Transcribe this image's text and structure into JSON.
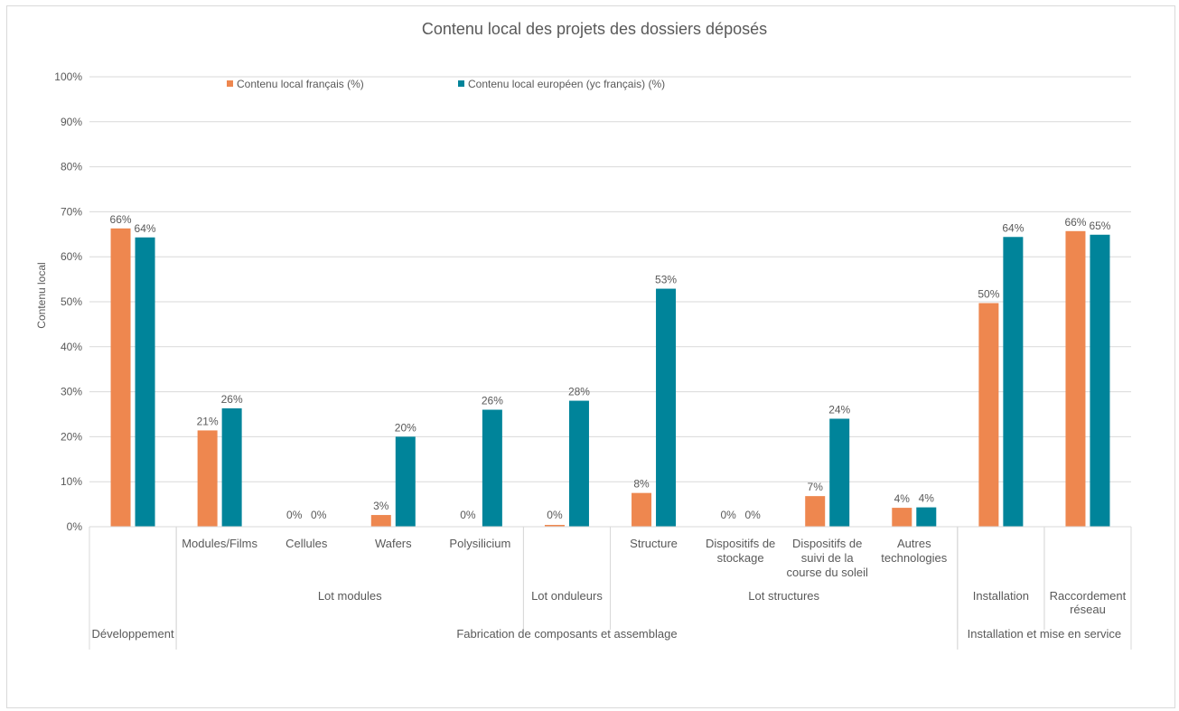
{
  "chart_data": {
    "type": "bar",
    "title": "Contenu local des projets des dossiers déposés",
    "ylabel": "Contenu local",
    "xlabel": "",
    "ylim": [
      0,
      100
    ],
    "y_ticks": [
      "0%",
      "10%",
      "20%",
      "30%",
      "40%",
      "50%",
      "60%",
      "70%",
      "80%",
      "90%",
      "100%"
    ],
    "grid": "horizontal",
    "legend_position": "top",
    "colors": {
      "fr": "#ee874f",
      "eu": "#00849a"
    },
    "series": [
      {
        "name": "Contenu local français (%)",
        "values": [
          66.3,
          21.4,
          0,
          2.6,
          0,
          0.4,
          7.5,
          0,
          6.8,
          4.2,
          49.7,
          65.7
        ],
        "labels": [
          "66%",
          "21%",
          "0%",
          "3%",
          "0%",
          "0%",
          "8%",
          "0%",
          "7%",
          "4%",
          "50%",
          "66%"
        ]
      },
      {
        "name": "Contenu local européen (yc français) (%)",
        "values": [
          64.3,
          26.3,
          0,
          20,
          26,
          28,
          52.9,
          0,
          24,
          4.3,
          64.4,
          64.9
        ],
        "labels": [
          "64%",
          "26%",
          "0%",
          "20%",
          "26%",
          "28%",
          "53%",
          "0%",
          "24%",
          "4%",
          "64%",
          "65%"
        ]
      }
    ],
    "categories": [
      "",
      "Modules/Films",
      "Cellules",
      "Wafers",
      "Polysilicium",
      "",
      "Structure",
      "Dispositifs de stockage",
      "Dispositifs de suivi de la course du soleil",
      "Autres technologies",
      "",
      ""
    ],
    "category_lines": [
      [],
      [
        "Modules/Films"
      ],
      [
        "Cellules"
      ],
      [
        "Wafers"
      ],
      [
        "Polysilicium"
      ],
      [],
      [
        "Structure"
      ],
      [
        "Dispositifs de",
        "stockage"
      ],
      [
        "Dispositifs de",
        "suivi de la",
        "course du soleil"
      ],
      [
        "Autres",
        "technologies"
      ],
      [],
      []
    ],
    "groups_level2": [
      {
        "label": "",
        "start": 0,
        "end": 0
      },
      {
        "label": "Lot modules",
        "start": 1,
        "end": 4
      },
      {
        "label": "Lot onduleurs",
        "start": 5,
        "end": 5
      },
      {
        "label": "Lot structures",
        "start": 6,
        "end": 9
      },
      {
        "label": "Installation",
        "start": 10,
        "end": 10
      },
      {
        "label": "Raccordement réseau",
        "start": 11,
        "end": 11
      }
    ],
    "groups_level2_lines": [
      [],
      [
        "Lot modules"
      ],
      [
        "Lot onduleurs"
      ],
      [
        "Lot structures"
      ],
      [
        "Installation"
      ],
      [
        "Raccordement",
        "réseau"
      ]
    ],
    "groups_level1": [
      {
        "label": "Développement",
        "start": 0,
        "end": 0
      },
      {
        "label": "Fabrication de composants et assemblage",
        "start": 1,
        "end": 9
      },
      {
        "label": "Installation et mise en service",
        "start": 10,
        "end": 11
      }
    ]
  }
}
